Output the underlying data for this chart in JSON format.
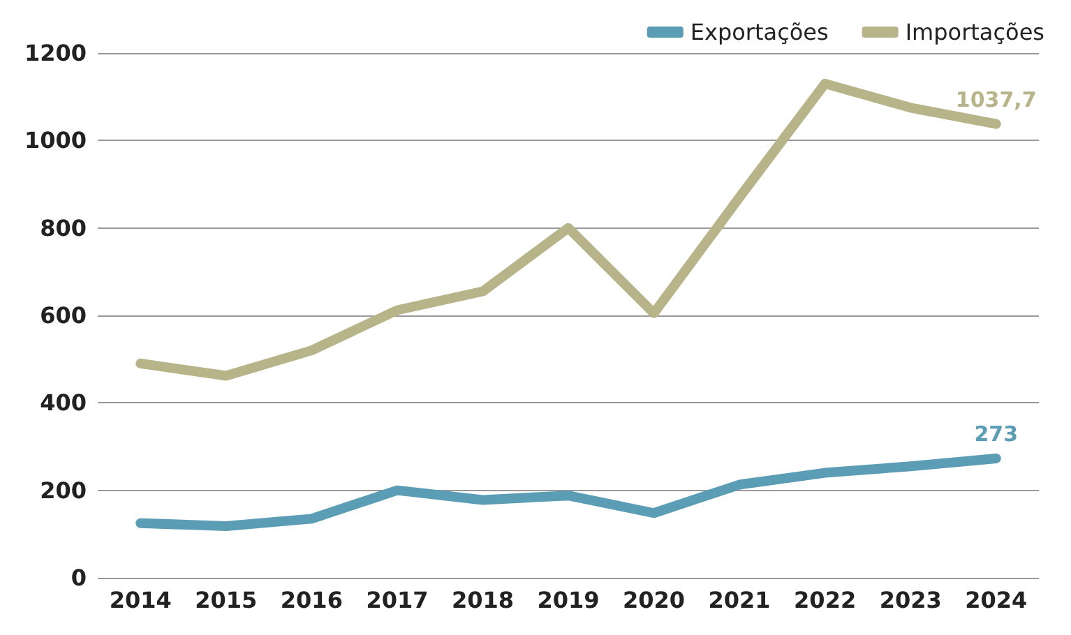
{
  "chart_data": {
    "type": "line",
    "categories": [
      "2014",
      "2015",
      "2016",
      "2017",
      "2018",
      "2019",
      "2020",
      "2021",
      "2022",
      "2023",
      "2024"
    ],
    "series": [
      {
        "name": "Exportações",
        "color": "#5b9db5",
        "values": [
          125,
          118,
          135,
          200,
          178,
          188,
          148,
          213,
          240,
          255,
          273
        ],
        "value_labels": [
          null,
          null,
          null,
          null,
          null,
          null,
          null,
          null,
          null,
          null,
          "273"
        ]
      },
      {
        "name": "Importações",
        "color": "#b8b48a",
        "values": [
          490,
          462,
          520,
          612,
          655,
          800,
          605,
          870,
          1130,
          1075,
          1037.7
        ],
        "value_labels": [
          null,
          null,
          null,
          null,
          null,
          null,
          null,
          null,
          null,
          null,
          "1037,7"
        ]
      }
    ],
    "ylim": [
      0,
      1200
    ],
    "yticks": [
      0,
      200,
      400,
      600,
      800,
      1000,
      1200
    ],
    "grid": "y",
    "legend": "top right",
    "marker": "none",
    "line_style": "solid"
  }
}
